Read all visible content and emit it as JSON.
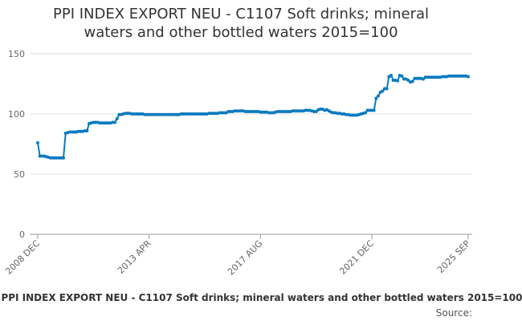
{
  "chart_data": {
    "type": "line",
    "title": "PPI INDEX EXPORT NEU - C1107 Soft drinks; mineral waters and other bottled waters 2015=100",
    "footer": "PPI INDEX EXPORT NEU - C1107 Soft drinks; mineral waters and other bottled waters 2015=100",
    "source": "Source:",
    "color": "#0a7abf",
    "grid": true,
    "ylim": [
      0,
      150
    ],
    "yticks": [
      0,
      50,
      100,
      150
    ],
    "categories": [
      "2008 DEC",
      null,
      null,
      null,
      null,
      null,
      null,
      null,
      null,
      null,
      null,
      null,
      null,
      null,
      null,
      null,
      null,
      null,
      null,
      null,
      null,
      null,
      null,
      null,
      null,
      null,
      null,
      null,
      null,
      null,
      null,
      null,
      null,
      null,
      null,
      null,
      null,
      null,
      null,
      null,
      null,
      null,
      null,
      null,
      null,
      null,
      null,
      null,
      null,
      null,
      null,
      null,
      "2013 APR",
      null,
      null,
      null,
      null,
      null,
      null,
      null,
      null,
      null,
      null,
      null,
      null,
      null,
      null,
      null,
      null,
      null,
      null,
      null,
      null,
      null,
      null,
      null,
      null,
      null,
      null,
      null,
      null,
      null,
      null,
      null,
      null,
      null,
      null,
      null,
      null,
      null,
      null,
      null,
      null,
      null,
      null,
      null,
      null,
      null,
      null,
      null,
      null,
      null,
      null,
      null,
      "2017 AUG",
      null,
      null,
      null,
      null,
      null,
      null,
      null,
      null,
      null,
      null,
      null,
      null,
      null,
      null,
      null,
      null,
      null,
      null,
      null,
      null,
      null,
      null,
      null,
      null,
      null,
      null,
      null,
      null,
      null,
      null,
      null,
      null,
      null,
      null,
      null,
      null,
      null,
      null,
      null,
      null,
      null,
      null,
      null,
      null,
      null,
      null,
      null,
      null,
      null,
      null,
      null,
      "2021 DEC",
      null,
      null,
      null,
      null,
      null,
      null,
      null,
      null,
      null,
      null,
      null,
      null,
      null,
      null,
      null,
      null,
      null,
      null,
      null,
      null,
      null,
      null,
      null,
      null,
      null,
      null,
      null,
      null,
      null,
      null,
      null,
      null,
      null,
      null,
      null,
      null,
      null,
      null,
      null,
      null,
      null,
      null,
      null,
      null,
      "2025 SEP"
    ],
    "values": [
      76,
      65,
      65,
      65,
      64.5,
      64,
      63.5,
      63.5,
      63.5,
      63.5,
      63.5,
      63.5,
      63.5,
      84,
      84.5,
      85,
      85,
      85,
      85,
      85.5,
      85.5,
      85.5,
      86,
      86,
      92,
      92.5,
      93,
      93,
      93,
      92.5,
      92.5,
      92.5,
      92.5,
      92.5,
      92.5,
      93,
      93,
      96,
      99.5,
      99.5,
      100,
      100.5,
      100.5,
      100.5,
      100,
      100,
      100,
      100,
      100,
      100,
      99.5,
      99.5,
      99.5,
      99.5,
      99.5,
      99.5,
      99.5,
      99.5,
      99.5,
      99.5,
      99.5,
      99.5,
      99.5,
      99.5,
      99.5,
      99.5,
      99.5,
      100,
      100,
      100,
      100,
      100,
      100,
      100,
      100,
      100,
      100,
      100,
      100,
      100,
      100.5,
      100.5,
      100.5,
      100.5,
      100.5,
      101,
      101,
      101,
      101,
      102,
      102,
      102,
      102.5,
      102.5,
      102.5,
      102.5,
      102.5,
      102,
      102,
      102,
      102,
      102,
      102,
      102,
      101.5,
      101.5,
      101.5,
      101.5,
      101,
      101,
      101,
      101.5,
      102,
      102,
      102,
      102,
      102,
      102,
      102,
      102.5,
      102.5,
      102.5,
      102.5,
      102.5,
      102.5,
      103,
      103,
      103,
      102.5,
      102,
      102,
      103.5,
      104,
      104,
      103,
      103.5,
      102.5,
      101.5,
      101,
      101,
      100.5,
      100.5,
      100,
      100,
      99.5,
      99.5,
      99,
      99,
      99,
      99,
      99.5,
      100,
      100.5,
      101,
      103,
      103,
      103,
      103,
      113,
      115,
      118,
      119,
      121,
      121,
      131,
      132,
      128,
      128,
      127.5,
      132,
      131.5,
      129,
      129,
      128,
      126.5,
      127,
      129.5,
      129.5,
      129.5,
      129.5,
      129,
      130.5,
      130.5,
      130.5,
      130.5,
      130.5,
      130.5,
      130.5,
      130.5,
      131,
      131,
      131,
      131.5,
      131.5,
      131.5,
      131.5,
      131.5,
      131.5,
      131.5,
      131.5,
      131.5,
      131
    ]
  }
}
